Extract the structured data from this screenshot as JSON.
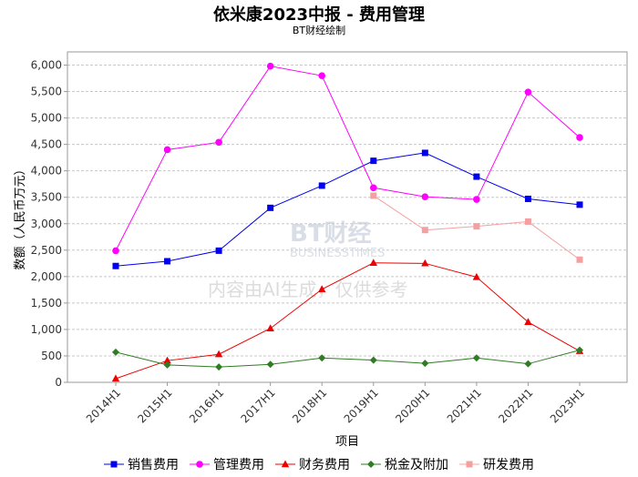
{
  "title": "依米康2023中报 - 费用管理",
  "subtitle": "BT财经绘制",
  "watermark": {
    "brand": "BT财经",
    "brand_en": "BUSINESSTIMES",
    "note": "内容由AI生成，仅供参考"
  },
  "chart_data": {
    "type": "line",
    "xlabel": "项目",
    "ylabel": "数额（人民币万元）",
    "categories": [
      "2014H1",
      "2015H1",
      "2016H1",
      "2017H1",
      "2018H1",
      "2019H1",
      "2020H1",
      "2021H1",
      "2022H1",
      "2023H1"
    ],
    "ylim": [
      0,
      6250
    ],
    "yticks": [
      0,
      500,
      1000,
      1500,
      2000,
      2500,
      3000,
      3500,
      4000,
      4500,
      5000,
      5500,
      6000
    ],
    "ytick_labels": [
      "0",
      "500",
      "1,000",
      "1,500",
      "2,000",
      "2,500",
      "3,000",
      "3,500",
      "4,000",
      "4,500",
      "5,000",
      "5,500",
      "6,000"
    ],
    "grid": true,
    "legend_position": "bottom",
    "series": [
      {
        "name": "销售费用",
        "color": "#0000ee",
        "marker": "square",
        "values": [
          2200,
          2290,
          2490,
          3300,
          3720,
          4190,
          4340,
          3890,
          3470,
          3360
        ]
      },
      {
        "name": "管理费用",
        "color": "#ff00ff",
        "marker": "circle",
        "values": [
          2490,
          4400,
          4540,
          5980,
          5800,
          3680,
          3510,
          3460,
          5490,
          4630
        ]
      },
      {
        "name": "财务费用",
        "color": "#ee0000",
        "marker": "triangle",
        "values": [
          70,
          410,
          530,
          1020,
          1760,
          2260,
          2250,
          1990,
          1140,
          590
        ]
      },
      {
        "name": "税金及附加",
        "color": "#2e7d22",
        "marker": "diamond",
        "values": [
          570,
          330,
          290,
          340,
          460,
          420,
          360,
          460,
          350,
          610
        ]
      },
      {
        "name": "研发费用",
        "color": "#f4a0a0",
        "marker": "square",
        "values": [
          null,
          null,
          null,
          null,
          null,
          3530,
          2880,
          2950,
          3040,
          2320
        ]
      }
    ]
  }
}
